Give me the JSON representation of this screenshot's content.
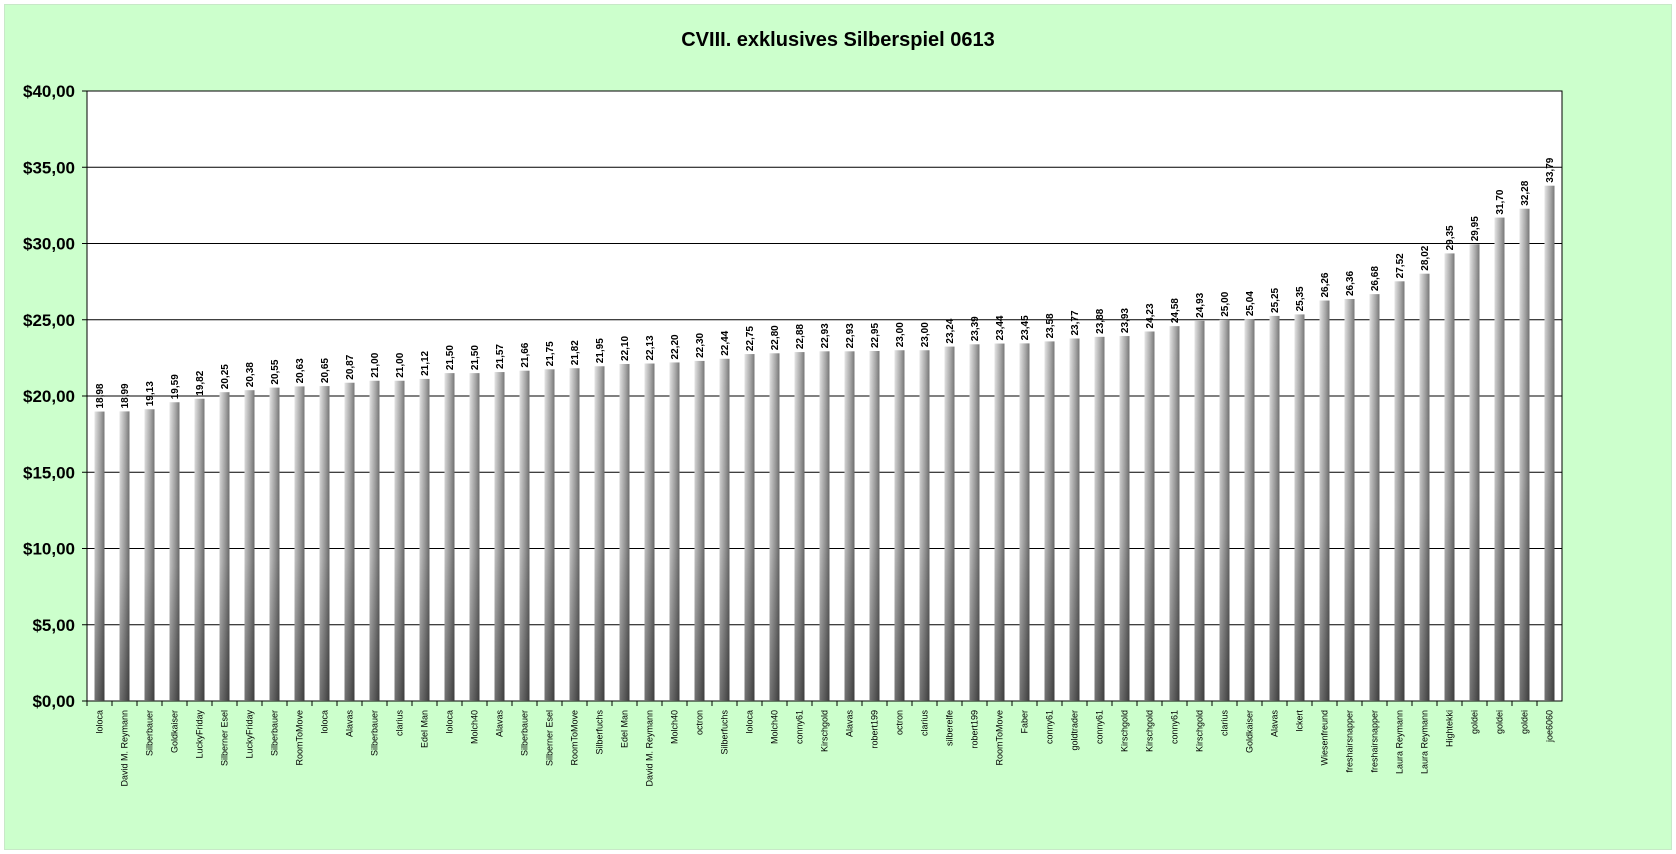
{
  "chart_data": {
    "type": "bar",
    "title": "CVIII. exklusives Silberspiel 0613",
    "xlabel": "",
    "ylabel": "",
    "ylim": [
      0,
      40
    ],
    "yticks": [
      0,
      5,
      10,
      15,
      20,
      25,
      30,
      35,
      40
    ],
    "ytick_labels": [
      "$0,00",
      "$5,00",
      "$10,00",
      "$15,00",
      "$20,00",
      "$25,00",
      "$30,00",
      "$35,00",
      "$40,00"
    ],
    "grid": true,
    "legend": "none",
    "categories": [
      "loloca",
      "David M. Reymann",
      "Silberbauer",
      "Goldkaiser",
      "LuckyFriday",
      "Silberner Esel",
      "LuckyFriday",
      "Silberbauer",
      "RoomToMove",
      "loloca",
      "Alavas",
      "Silberbauer",
      "clarius",
      "Edel Man",
      "loloca",
      "Molch40",
      "Alavas",
      "Silberbauer",
      "Silberner Esel",
      "RoomToMove",
      "Silberfuchs",
      "Edel Man",
      "David M. Reymann",
      "Molch40",
      "octron",
      "Silberfuchs",
      "loloca",
      "Molch40",
      "conny61",
      "Kirschgold",
      "Alavas",
      "robert199",
      "octron",
      "clarius",
      "silberelfe",
      "robert199",
      "RoomToMove",
      "Faber",
      "conny61",
      "goldtrader",
      "conny61",
      "Kirschgold",
      "Kirschgold",
      "conny61",
      "Kirschgold",
      "clarius",
      "Goldkaiser",
      "Alavas",
      "lckert",
      "Wiesenfreund",
      "freshairsnapper",
      "freshairsnapper",
      "Laura Reymann",
      "Laura Reymann",
      "Hightekki",
      "goldei",
      "goldei",
      "goldei",
      "joe6060"
    ],
    "values": [
      18.98,
      18.99,
      19.13,
      19.59,
      19.82,
      20.25,
      20.38,
      20.55,
      20.63,
      20.65,
      20.87,
      21.0,
      21.0,
      21.12,
      21.5,
      21.5,
      21.57,
      21.66,
      21.75,
      21.82,
      21.95,
      22.1,
      22.13,
      22.2,
      22.3,
      22.44,
      22.75,
      22.8,
      22.88,
      22.93,
      22.93,
      22.95,
      23.0,
      23.0,
      23.24,
      23.39,
      23.44,
      23.45,
      23.58,
      23.77,
      23.88,
      23.93,
      24.23,
      24.58,
      24.93,
      25.0,
      25.04,
      25.25,
      25.35,
      26.26,
      26.36,
      26.68,
      27.52,
      28.02,
      29.35,
      29.95,
      31.7,
      32.28,
      33.79
    ],
    "value_labels": [
      "18,98",
      "18,99",
      "19,13",
      "19,59",
      "19,82",
      "20,25",
      "20,38",
      "20,55",
      "20,63",
      "20,65",
      "20,87",
      "21,00",
      "21,00",
      "21,12",
      "21,50",
      "21,50",
      "21,57",
      "21,66",
      "21,75",
      "21,82",
      "21,95",
      "22,10",
      "22,13",
      "22,20",
      "22,30",
      "22,44",
      "22,75",
      "22,80",
      "22,88",
      "22,93",
      "22,93",
      "22,95",
      "23,00",
      "23,00",
      "23,24",
      "23,39",
      "23,44",
      "23,45",
      "23,58",
      "23,77",
      "23,88",
      "23,93",
      "24,23",
      "24,58",
      "24,93",
      "25,00",
      "25,04",
      "25,25",
      "25,35",
      "26,26",
      "26,36",
      "26,68",
      "27,52",
      "28,02",
      "29,35",
      "29,95",
      "31,70",
      "32,28",
      "33,79"
    ],
    "colors": {
      "background": "#ccffcc",
      "plot": "#ffffff",
      "bar_light": "#d0d0d0",
      "bar_dark": "#555555"
    }
  }
}
